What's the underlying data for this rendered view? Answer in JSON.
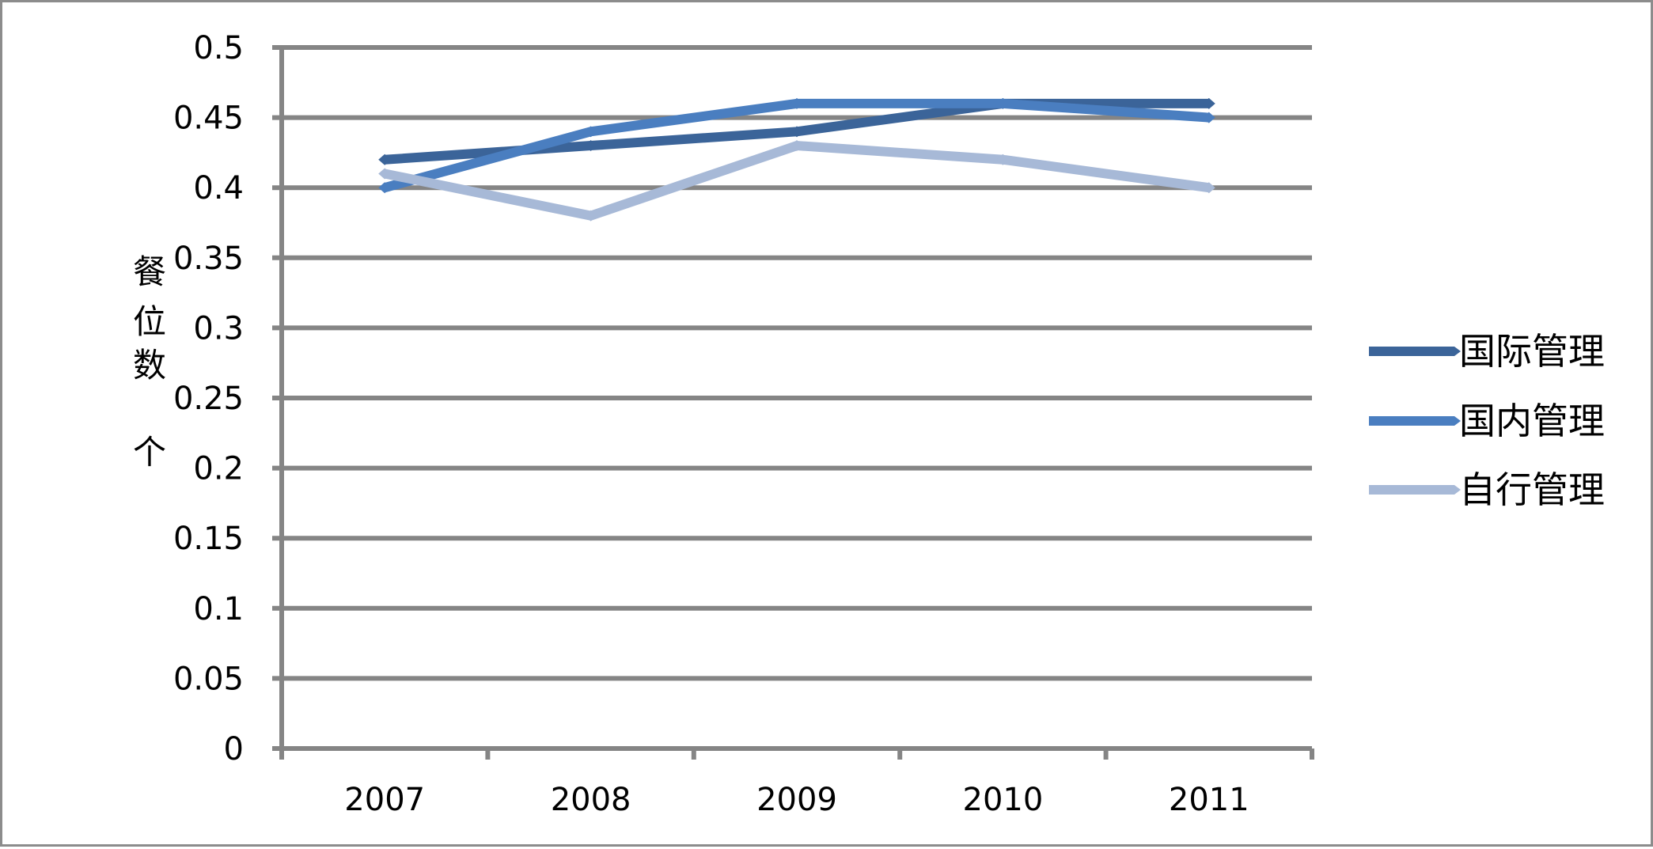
{
  "chart_data": {
    "type": "line",
    "title": "",
    "xlabel": "",
    "ylabel": "餐位数个",
    "categories": [
      "2007",
      "2008",
      "2009",
      "2010",
      "2011"
    ],
    "ylim": [
      0,
      0.5
    ],
    "y_ticks": [
      "0",
      "0.05",
      "0.1",
      "0.15",
      "0.2",
      "0.25",
      "0.3",
      "0.35",
      "0.4",
      "0.45",
      "0.5"
    ],
    "grid": true,
    "legend_position": "right",
    "series": [
      {
        "name": "国际管理",
        "color": "#3b6499",
        "values": [
          0.42,
          0.43,
          0.44,
          0.46,
          0.46
        ]
      },
      {
        "name": "国内管理",
        "color": "#4a7ec0",
        "values": [
          0.4,
          0.44,
          0.46,
          0.46,
          0.45
        ]
      },
      {
        "name": "自行管理",
        "color": "#a7b9d7",
        "values": [
          0.41,
          0.38,
          0.43,
          0.42,
          0.4
        ]
      }
    ]
  }
}
